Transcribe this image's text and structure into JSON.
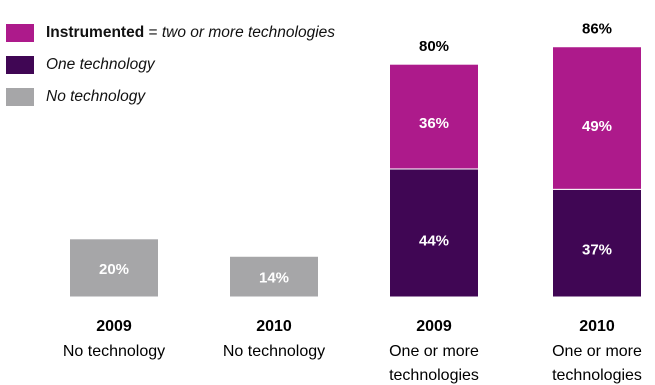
{
  "legend": [
    {
      "bold": "Instrumented",
      "sep": " = ",
      "italic": "two or more technologies",
      "color": "#ad1a8b"
    },
    {
      "bold": "",
      "sep": "",
      "italic": "One technology",
      "color": "#400654"
    },
    {
      "bold": "",
      "sep": "",
      "italic": "No technology",
      "color": "#a6a6a8"
    }
  ],
  "chart_data": {
    "type": "bar",
    "stacked": true,
    "grid": false,
    "ylim": [
      0,
      100
    ],
    "categories": [
      {
        "year": "2009",
        "label_lines": [
          "No technology"
        ]
      },
      {
        "year": "2010",
        "label_lines": [
          "No technology"
        ]
      },
      {
        "year": "2009",
        "label_lines": [
          "One or more",
          "technologies"
        ]
      },
      {
        "year": "2010",
        "label_lines": [
          "One or more",
          "technologies"
        ]
      }
    ],
    "series": [
      {
        "key": "none",
        "color": "#a6a6a8",
        "values": [
          20,
          14,
          null,
          null
        ],
        "labels": [
          "20%",
          "14%",
          "",
          ""
        ]
      },
      {
        "key": "one",
        "color": "#400654",
        "values": [
          null,
          null,
          44,
          37
        ],
        "labels": [
          "",
          "",
          "44%",
          "37%"
        ]
      },
      {
        "key": "two_plus",
        "color": "#ad1a8b",
        "values": [
          null,
          null,
          36,
          49
        ],
        "labels": [
          "",
          "",
          "36%",
          "49%"
        ]
      }
    ],
    "totals": [
      "",
      "",
      "80%",
      "86%"
    ]
  }
}
